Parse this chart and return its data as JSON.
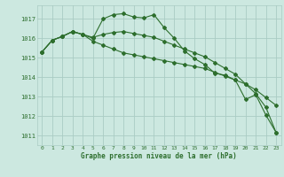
{
  "xlabel": "Graphe pression niveau de la mer (hPa)",
  "background_color": "#cce8e0",
  "grid_color": "#aaccc4",
  "line_color": "#2d6e2d",
  "ylim": [
    1010.5,
    1017.7
  ],
  "yticks": [
    1011,
    1012,
    1013,
    1014,
    1015,
    1016,
    1017
  ],
  "xlim": [
    -0.5,
    23.5
  ],
  "xticks": [
    0,
    1,
    2,
    3,
    4,
    5,
    6,
    7,
    8,
    9,
    10,
    11,
    12,
    13,
    14,
    15,
    16,
    17,
    18,
    19,
    20,
    21,
    22,
    23
  ],
  "series1": [
    1015.3,
    1015.9,
    1016.1,
    1016.35,
    1016.2,
    1016.0,
    1017.0,
    1017.22,
    1017.27,
    1017.1,
    1017.05,
    1017.22,
    1016.55,
    1016.0,
    1015.35,
    1014.95,
    1014.65,
    1014.2,
    1014.1,
    1013.85,
    1012.85,
    1013.1,
    1012.05,
    1011.15
  ],
  "series2": [
    1015.3,
    1015.9,
    1016.1,
    1016.35,
    1016.2,
    1016.05,
    1016.2,
    1016.3,
    1016.35,
    1016.25,
    1016.15,
    1016.05,
    1015.85,
    1015.65,
    1015.45,
    1015.25,
    1015.05,
    1014.75,
    1014.45,
    1014.15,
    1013.65,
    1013.15,
    1012.45,
    1011.15
  ],
  "series3": [
    1015.3,
    1015.9,
    1016.1,
    1016.35,
    1016.2,
    1015.85,
    1015.65,
    1015.45,
    1015.25,
    1015.15,
    1015.05,
    1014.95,
    1014.85,
    1014.75,
    1014.65,
    1014.55,
    1014.45,
    1014.25,
    1014.05,
    1013.85,
    1013.65,
    1013.35,
    1012.95,
    1012.55
  ]
}
